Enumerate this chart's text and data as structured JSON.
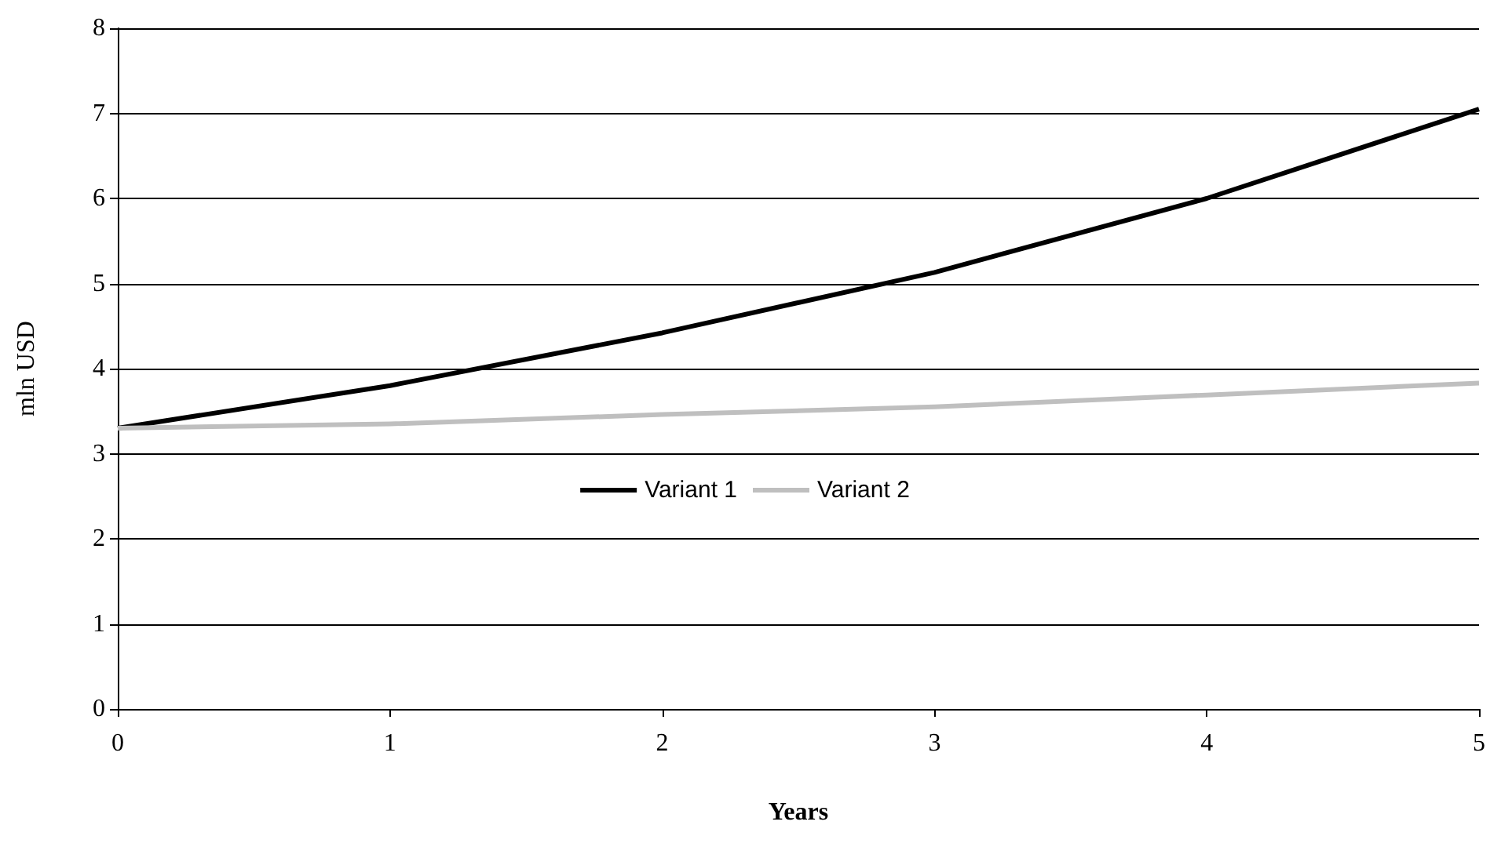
{
  "chart_data": {
    "type": "line",
    "xlabel": "Years",
    "ylabel": "mln USD",
    "x": [
      0,
      1,
      2,
      3,
      4,
      5
    ],
    "series": [
      {
        "name": "Variant 1",
        "color": "#000000",
        "values": [
          3.3,
          3.8,
          4.42,
          5.13,
          6.0,
          7.05
        ]
      },
      {
        "name": "Variant 2",
        "color": "#bfbfbf",
        "values": [
          3.3,
          3.35,
          3.46,
          3.55,
          3.69,
          3.83
        ]
      }
    ],
    "xlim": [
      0,
      5
    ],
    "xticks": [
      0,
      1,
      2,
      3,
      4,
      5
    ],
    "ylim": [
      0,
      8
    ],
    "yticks": [
      0,
      1,
      2,
      3,
      4,
      5,
      6,
      7,
      8
    ],
    "grid": "y",
    "legend": "center",
    "marker": "none",
    "line_style": "solid"
  }
}
